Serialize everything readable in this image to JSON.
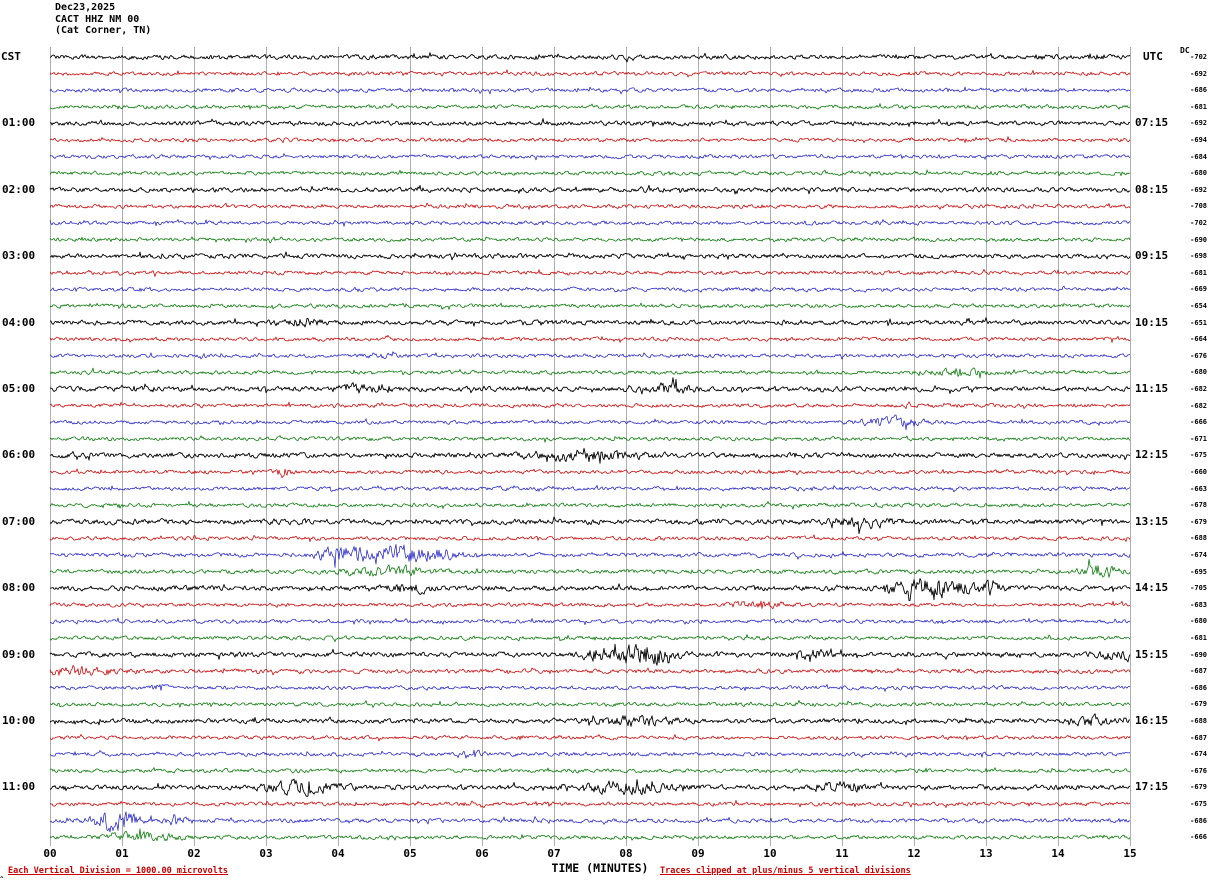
{
  "header": {
    "date": "Dec23,2025",
    "station": "CACT HHZ NM 00",
    "location": "(Cat Corner, TN)"
  },
  "axes": {
    "left_tz": "CST",
    "right_tz": "UTC",
    "dc_label": "DC",
    "xlabel": "TIME (MINUTES)",
    "x_ticks": [
      "00",
      "01",
      "02",
      "03",
      "04",
      "05",
      "06",
      "07",
      "08",
      "09",
      "10",
      "11",
      "12",
      "13",
      "14",
      "15"
    ]
  },
  "left_time_labels": [
    {
      "row": 4,
      "text": "01:00"
    },
    {
      "row": 8,
      "text": "02:00"
    },
    {
      "row": 12,
      "text": "03:00"
    },
    {
      "row": 16,
      "text": "04:00"
    },
    {
      "row": 20,
      "text": "05:00"
    },
    {
      "row": 24,
      "text": "06:00"
    },
    {
      "row": 28,
      "text": "07:00"
    },
    {
      "row": 32,
      "text": "08:00"
    },
    {
      "row": 36,
      "text": "09:00"
    },
    {
      "row": 40,
      "text": "10:00"
    },
    {
      "row": 44,
      "text": "11:00"
    }
  ],
  "right_time_labels": [
    {
      "row": 4,
      "text": "07:15"
    },
    {
      "row": 8,
      "text": "08:15"
    },
    {
      "row": 12,
      "text": "09:15"
    },
    {
      "row": 16,
      "text": "10:15"
    },
    {
      "row": 20,
      "text": "11:15"
    },
    {
      "row": 24,
      "text": "12:15"
    },
    {
      "row": 28,
      "text": "13:15"
    },
    {
      "row": 32,
      "text": "14:15"
    },
    {
      "row": 36,
      "text": "15:15"
    },
    {
      "row": 40,
      "text": "16:15"
    },
    {
      "row": 44,
      "text": "17:15"
    }
  ],
  "footer": {
    "left": "Each Vertical Division = 1000.00 microvolts",
    "right": "Traces clipped at plus/minus 5 vertical divisions",
    "corner_mark": "^"
  },
  "colors": {
    "black": "#000000",
    "red": "#cc0000",
    "blue": "#2222cc",
    "green": "#007700",
    "grid": "#999999",
    "footer_red": "#cc0000"
  },
  "chart_data": {
    "type": "line",
    "title": "CACT HHZ NM 00 (Cat Corner, TN) Dec23,2025 helicorder",
    "xlabel": "TIME (MINUTES)",
    "x_range": [
      0,
      15
    ],
    "minutes_per_row": 15,
    "rows_per_hour": 4,
    "color_cycle": [
      "black",
      "red",
      "blue",
      "green"
    ],
    "vertical_division_microvolts": 1000.0,
    "clip_divisions": 5,
    "traces": [
      {
        "color": "black",
        "dc": -702,
        "amp": 1.2,
        "events": []
      },
      {
        "color": "red",
        "dc": -692,
        "amp": 1.0,
        "events": []
      },
      {
        "color": "blue",
        "dc": -686,
        "amp": 1.0,
        "events": []
      },
      {
        "color": "green",
        "dc": -681,
        "amp": 1.0,
        "events": []
      },
      {
        "color": "black",
        "dc": -692,
        "amp": 1.2,
        "events": []
      },
      {
        "color": "red",
        "dc": -694,
        "amp": 1.0,
        "events": []
      },
      {
        "color": "blue",
        "dc": -684,
        "amp": 1.0,
        "events": []
      },
      {
        "color": "green",
        "dc": -680,
        "amp": 1.0,
        "events": []
      },
      {
        "color": "black",
        "dc": -692,
        "amp": 1.2,
        "events": []
      },
      {
        "color": "red",
        "dc": -708,
        "amp": 1.0,
        "events": []
      },
      {
        "color": "blue",
        "dc": -702,
        "amp": 1.0,
        "events": []
      },
      {
        "color": "green",
        "dc": -690,
        "amp": 1.0,
        "events": []
      },
      {
        "color": "black",
        "dc": -698,
        "amp": 1.2,
        "events": []
      },
      {
        "color": "red",
        "dc": -681,
        "amp": 1.0,
        "events": []
      },
      {
        "color": "blue",
        "dc": -669,
        "amp": 1.0,
        "events": []
      },
      {
        "color": "green",
        "dc": -654,
        "amp": 1.0,
        "events": []
      },
      {
        "color": "black",
        "dc": -651,
        "amp": 1.25,
        "events": [
          [
            3.5,
            1.2,
            0.3
          ]
        ]
      },
      {
        "color": "red",
        "dc": -664,
        "amp": 1.0,
        "events": []
      },
      {
        "color": "blue",
        "dc": -676,
        "amp": 1.0,
        "events": [
          [
            4.6,
            1.2,
            0.2
          ]
        ]
      },
      {
        "color": "green",
        "dc": -680,
        "amp": 1.0,
        "events": [
          [
            12.6,
            2.2,
            0.35
          ]
        ]
      },
      {
        "color": "black",
        "dc": -682,
        "amp": 1.3,
        "events": [
          [
            4.3,
            1.3,
            0.3
          ],
          [
            8.6,
            1.8,
            0.3
          ]
        ]
      },
      {
        "color": "red",
        "dc": -682,
        "amp": 1.0,
        "events": []
      },
      {
        "color": "blue",
        "dc": -666,
        "amp": 1.0,
        "events": [
          [
            11.7,
            2.2,
            0.4
          ]
        ]
      },
      {
        "color": "green",
        "dc": -671,
        "amp": 1.0,
        "events": []
      },
      {
        "color": "black",
        "dc": -675,
        "amp": 1.3,
        "events": [
          [
            7.4,
            1.6,
            0.8
          ]
        ]
      },
      {
        "color": "red",
        "dc": -660,
        "amp": 1.0,
        "events": [
          [
            3.2,
            2.8,
            0.12
          ]
        ]
      },
      {
        "color": "blue",
        "dc": -663,
        "amp": 1.0,
        "events": []
      },
      {
        "color": "green",
        "dc": -678,
        "amp": 1.0,
        "events": []
      },
      {
        "color": "black",
        "dc": -679,
        "amp": 1.4,
        "events": [
          [
            11.3,
            1.4,
            0.5
          ]
        ]
      },
      {
        "color": "red",
        "dc": -688,
        "amp": 1.0,
        "events": []
      },
      {
        "color": "blue",
        "dc": -674,
        "amp": 1.1,
        "events": [
          [
            4.0,
            3.2,
            0.3
          ],
          [
            4.75,
            4.5,
            0.45
          ],
          [
            5.4,
            2.4,
            0.3
          ]
        ]
      },
      {
        "color": "green",
        "dc": -695,
        "amp": 1.1,
        "events": [
          [
            4.7,
            2.0,
            0.6
          ],
          [
            14.6,
            2.6,
            0.3
          ]
        ]
      },
      {
        "color": "black",
        "dc": -705,
        "amp": 1.3,
        "events": [
          [
            5.0,
            1.6,
            0.3
          ],
          [
            12.25,
            4.5,
            0.5
          ],
          [
            13.1,
            2.6,
            0.15
          ]
        ]
      },
      {
        "color": "red",
        "dc": -683,
        "amp": 1.0,
        "events": [
          [
            9.8,
            1.5,
            0.4
          ]
        ]
      },
      {
        "color": "blue",
        "dc": -680,
        "amp": 1.0,
        "events": []
      },
      {
        "color": "green",
        "dc": -681,
        "amp": 1.0,
        "events": []
      },
      {
        "color": "black",
        "dc": -690,
        "amp": 1.3,
        "events": [
          [
            7.6,
            2.0,
            0.2
          ],
          [
            8.25,
            4.5,
            0.4
          ],
          [
            10.6,
            1.6,
            0.2
          ],
          [
            14.9,
            1.6,
            0.3
          ]
        ]
      },
      {
        "color": "red",
        "dc": -687,
        "amp": 1.1,
        "events": [
          [
            0.3,
            2.0,
            0.5
          ]
        ]
      },
      {
        "color": "blue",
        "dc": -686,
        "amp": 1.0,
        "events": [
          [
            1.5,
            2.4,
            0.1
          ]
        ]
      },
      {
        "color": "green",
        "dc": -679,
        "amp": 1.0,
        "events": []
      },
      {
        "color": "black",
        "dc": -688,
        "amp": 1.3,
        "events": [
          [
            8.1,
            1.6,
            0.6
          ],
          [
            14.5,
            1.6,
            0.3
          ]
        ]
      },
      {
        "color": "red",
        "dc": -687,
        "amp": 1.0,
        "events": []
      },
      {
        "color": "blue",
        "dc": -674,
        "amp": 1.0,
        "events": [
          [
            5.85,
            2.4,
            0.12
          ]
        ]
      },
      {
        "color": "green",
        "dc": -676,
        "amp": 1.0,
        "events": []
      },
      {
        "color": "black",
        "dc": -679,
        "amp": 1.3,
        "events": [
          [
            3.5,
            2.4,
            0.5
          ],
          [
            8.0,
            2.0,
            0.6
          ],
          [
            11.0,
            1.6,
            0.3
          ]
        ]
      },
      {
        "color": "red",
        "dc": -675,
        "amp": 1.0,
        "events": []
      },
      {
        "color": "blue",
        "dc": -686,
        "amp": 1.1,
        "events": [
          [
            0.9,
            4.5,
            0.3
          ],
          [
            1.75,
            2.4,
            0.12
          ]
        ]
      },
      {
        "color": "green",
        "dc": -666,
        "amp": 1.0,
        "events": [
          [
            1.3,
            2.0,
            0.5
          ]
        ]
      }
    ]
  }
}
